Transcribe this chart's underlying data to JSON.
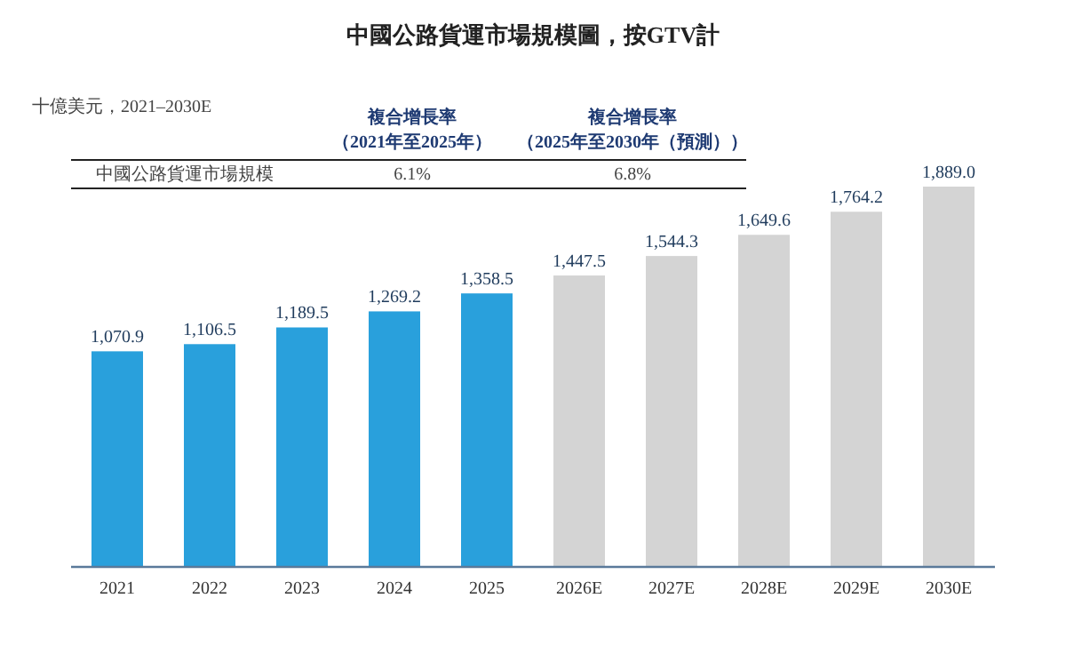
{
  "chart_data": {
    "type": "bar",
    "title": "中國公路貨運市場規模圖，按GTV計",
    "subtitle": "十億美元，2021–2030E",
    "categories": [
      "2021",
      "2022",
      "2023",
      "2024",
      "2025",
      "2026E",
      "2027E",
      "2028E",
      "2029E",
      "2030E"
    ],
    "values": [
      1070.9,
      1106.5,
      1189.5,
      1269.2,
      1358.5,
      1447.5,
      1544.3,
      1649.6,
      1764.2,
      1889.0
    ],
    "colors": [
      "#29a0dc",
      "#29a0dc",
      "#29a0dc",
      "#29a0dc",
      "#29a0dc",
      "#d4d4d4",
      "#d4d4d4",
      "#d4d4d4",
      "#d4d4d4",
      "#d4d4d4"
    ],
    "value_labels": [
      "1,070.9",
      "1,106.5",
      "1,189.5",
      "1,269.2",
      "1,358.5",
      "1,447.5",
      "1,544.3",
      "1,649.6",
      "1,764.2",
      "1,889.0"
    ],
    "annotations": [
      "複合增長率",
      "（2021年至2025年）",
      "複合增長率",
      "（2025年至2030年（預測））",
      "中國公路貨運市場規模",
      "6.1%",
      "6.8%"
    ]
  }
}
